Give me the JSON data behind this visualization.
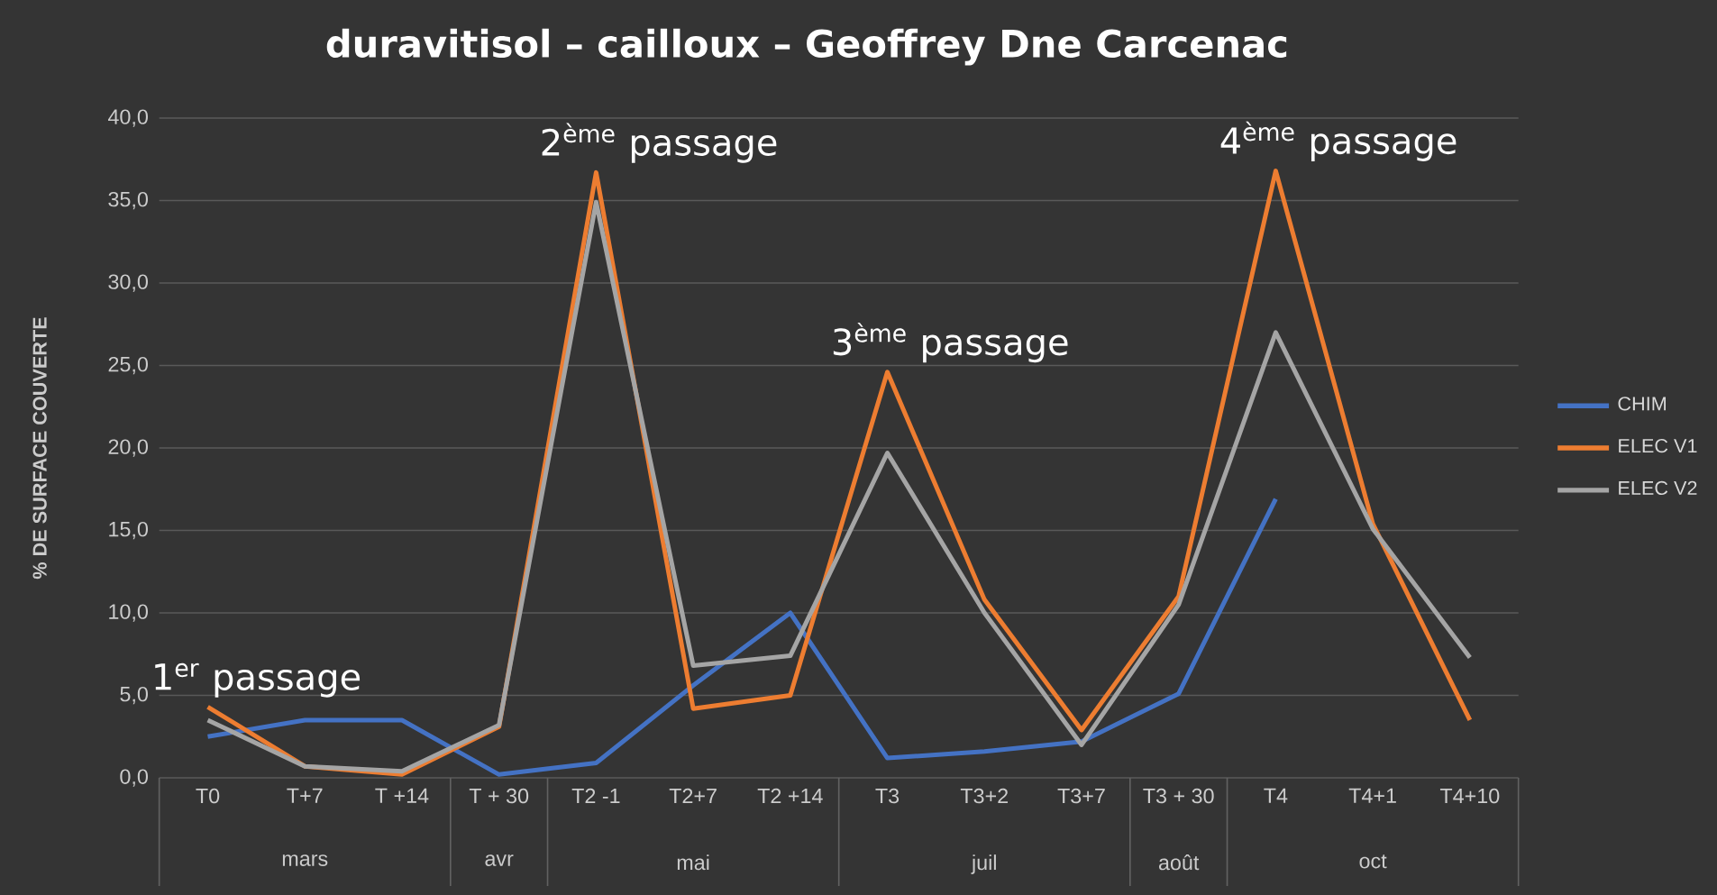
{
  "chart_data": {
    "type": "line",
    "title": "duravitisol – cailloux – Geoffrey Dne Carcenac",
    "ylabel": "% DE SURFACE COUVERTE",
    "categories": [
      "T0",
      "T+7",
      "T +14",
      "T + 30",
      "T2 -1",
      "T2+7",
      "T2 +14",
      "T3",
      "T3+2",
      "T3+7",
      "T3 + 30",
      "T4",
      "T4+1",
      "T4+10"
    ],
    "series": [
      {
        "name": "CHIM",
        "color": "#4472c4",
        "values": [
          2.5,
          3.5,
          3.5,
          0.2,
          0.9,
          5.6,
          10.0,
          1.2,
          1.6,
          2.2,
          5.1,
          16.9,
          null,
          null
        ]
      },
      {
        "name": "ELEC V1",
        "color": "#ed7d31",
        "values": [
          4.3,
          0.7,
          0.2,
          3.1,
          36.7,
          4.2,
          5.0,
          24.6,
          10.8,
          2.9,
          11.0,
          36.8,
          15.4,
          3.5
        ]
      },
      {
        "name": "ELEC V2",
        "color": "#a5a5a5",
        "values": [
          3.5,
          0.7,
          0.4,
          3.2,
          34.9,
          6.8,
          7.4,
          19.7,
          10.0,
          2.0,
          10.5,
          27.0,
          15.1,
          7.3
        ]
      }
    ],
    "ylim": [
      0,
      40
    ],
    "yticks": [
      {
        "value": 0,
        "label": "0,0"
      },
      {
        "value": 5,
        "label": "5,0"
      },
      {
        "value": 10,
        "label": "10,0"
      },
      {
        "value": 15,
        "label": "15,0"
      },
      {
        "value": 20,
        "label": "20,0"
      },
      {
        "value": 25,
        "label": "25,0"
      },
      {
        "value": 30,
        "label": "30,0"
      },
      {
        "value": 35,
        "label": "35,0"
      },
      {
        "value": 40,
        "label": "40,0"
      }
    ],
    "grid": "y",
    "legend": "right",
    "marker": "none",
    "line_style": "solid",
    "annotations": [
      {
        "text": "1$^{er}$ passage",
        "x": "T0",
        "y": 4.3
      },
      {
        "text": "2$^{ème}$ passage",
        "x": "T2 -1",
        "y": 36.7
      },
      {
        "text": "3$^{ème}$ passage",
        "x": "T3",
        "y": 24.6
      },
      {
        "text": "4$^{ème}$ passage",
        "x": "T4",
        "y": 36.8
      },
      "mars",
      "avr",
      "mai",
      "juil",
      "août",
      "oct"
    ]
  }
}
